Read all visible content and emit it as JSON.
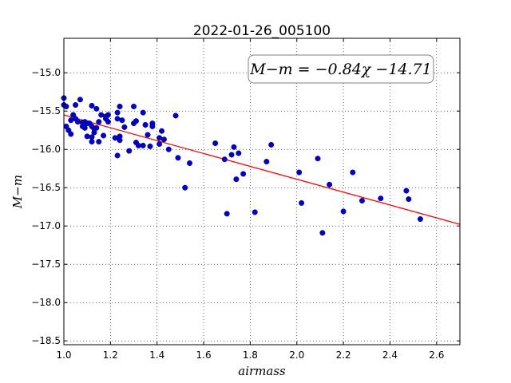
{
  "chart_data": {
    "type": "scatter",
    "title": "2022-01-26_005100",
    "xlabel": "airmass",
    "ylabel": "M−m",
    "xlim": [
      1.0,
      2.7
    ],
    "ylim": [
      -18.55,
      -14.55
    ],
    "xticks": [
      1.0,
      1.2,
      1.4,
      1.6,
      1.8,
      2.0,
      2.2,
      2.4,
      2.6
    ],
    "xtick_labels": [
      "1.0",
      "1.2",
      "1.4",
      "1.6",
      "1.8",
      "2.0",
      "2.2",
      "2.4",
      "2.6"
    ],
    "yticks": [
      -15.0,
      -15.5,
      -16.0,
      -16.5,
      -17.0,
      -17.5,
      -18.0,
      -18.5
    ],
    "ytick_labels": [
      "−15.0",
      "−15.5",
      "−16.0",
      "−16.5",
      "−17.0",
      "−17.5",
      "−18.0",
      "−18.5"
    ],
    "grid": true,
    "annotation": "M−m = −0.84χ −14.71",
    "fit": {
      "slope": -0.84,
      "intercept": -14.71,
      "color": "#ff0000"
    },
    "point_color": "#0000cc",
    "points": [
      [
        1.0,
        -15.33
      ],
      [
        1.0,
        -15.42
      ],
      [
        1.01,
        -15.44
      ],
      [
        1.01,
        -15.7
      ],
      [
        1.02,
        -15.75
      ],
      [
        1.03,
        -15.8
      ],
      [
        1.03,
        -15.62
      ],
      [
        1.04,
        -15.55
      ],
      [
        1.05,
        -15.42
      ],
      [
        1.05,
        -15.6
      ],
      [
        1.06,
        -15.64
      ],
      [
        1.07,
        -15.35
      ],
      [
        1.08,
        -15.65
      ],
      [
        1.08,
        -15.7
      ],
      [
        1.09,
        -15.72
      ],
      [
        1.09,
        -15.64
      ],
      [
        1.1,
        -15.66
      ],
      [
        1.1,
        -15.83
      ],
      [
        1.11,
        -15.66
      ],
      [
        1.12,
        -15.43
      ],
      [
        1.12,
        -15.7
      ],
      [
        1.12,
        -15.84
      ],
      [
        1.12,
        -15.9
      ],
      [
        1.13,
        -15.78
      ],
      [
        1.13,
        -15.73
      ],
      [
        1.14,
        -15.47
      ],
      [
        1.14,
        -15.72
      ],
      [
        1.15,
        -15.9
      ],
      [
        1.15,
        -15.64
      ],
      [
        1.16,
        -15.55
      ],
      [
        1.17,
        -15.82
      ],
      [
        1.18,
        -15.6
      ],
      [
        1.18,
        -15.57
      ],
      [
        1.19,
        -15.64
      ],
      [
        1.19,
        -15.55
      ],
      [
        1.22,
        -15.85
      ],
      [
        1.23,
        -15.52
      ],
      [
        1.23,
        -15.6
      ],
      [
        1.23,
        -16.08
      ],
      [
        1.24,
        -15.44
      ],
      [
        1.24,
        -15.83
      ],
      [
        1.24,
        -15.88
      ],
      [
        1.25,
        -15.62
      ],
      [
        1.26,
        -15.71
      ],
      [
        1.28,
        -16.02
      ],
      [
        1.3,
        -15.44
      ],
      [
        1.3,
        -15.66
      ],
      [
        1.31,
        -15.63
      ],
      [
        1.31,
        -15.91
      ],
      [
        1.32,
        -15.95
      ],
      [
        1.34,
        -15.52
      ],
      [
        1.34,
        -15.95
      ],
      [
        1.35,
        -15.68
      ],
      [
        1.36,
        -15.81
      ],
      [
        1.37,
        -15.96
      ],
      [
        1.38,
        -15.66
      ],
      [
        1.38,
        -15.7
      ],
      [
        1.41,
        -15.85
      ],
      [
        1.41,
        -15.93
      ],
      [
        1.42,
        -15.76
      ],
      [
        1.43,
        -15.87
      ],
      [
        1.45,
        -16.0
      ],
      [
        1.48,
        -15.56
      ],
      [
        1.49,
        -16.11
      ],
      [
        1.52,
        -16.5
      ],
      [
        1.54,
        -16.18
      ],
      [
        1.65,
        -15.92
      ],
      [
        1.69,
        -16.13
      ],
      [
        1.7,
        -16.84
      ],
      [
        1.72,
        -16.07
      ],
      [
        1.73,
        -15.97
      ],
      [
        1.74,
        -16.39
      ],
      [
        1.75,
        -16.05
      ],
      [
        1.77,
        -16.32
      ],
      [
        1.82,
        -16.82
      ],
      [
        1.87,
        -16.16
      ],
      [
        1.89,
        -15.94
      ],
      [
        2.01,
        -16.3
      ],
      [
        2.02,
        -16.7
      ],
      [
        2.09,
        -16.12
      ],
      [
        2.11,
        -17.09
      ],
      [
        2.14,
        -16.46
      ],
      [
        2.2,
        -16.81
      ],
      [
        2.24,
        -16.3
      ],
      [
        2.28,
        -16.67
      ],
      [
        2.36,
        -16.64
      ],
      [
        2.47,
        -16.54
      ],
      [
        2.48,
        -16.65
      ],
      [
        2.53,
        -16.91
      ]
    ]
  }
}
